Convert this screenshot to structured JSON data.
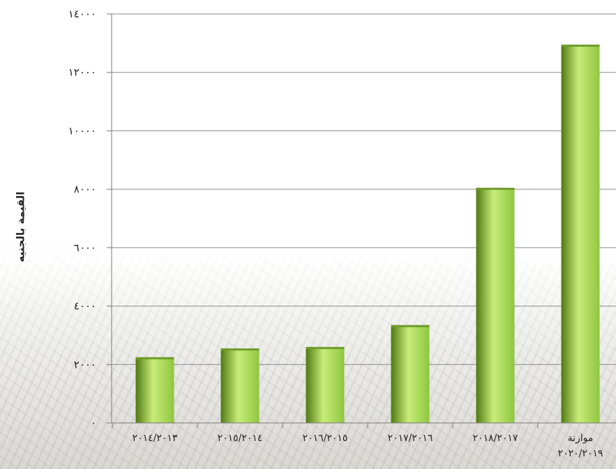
{
  "chart_data": {
    "type": "bar",
    "title": "",
    "xlabel": "",
    "ylabel": "القيمة بالجنيه",
    "categories": [
      [
        "٢٠١٤/٢٠١٣"
      ],
      [
        "٢٠١٥/٢٠١٤"
      ],
      [
        "٢٠١٦/٢٠١٥"
      ],
      [
        "٢٠١٧/٢٠١٦"
      ],
      [
        "٢٠١٨/٢٠١٧"
      ],
      [
        "موازنة",
        "٢٠٢٠/٢٠١٩"
      ]
    ],
    "values": [
      2250,
      2550,
      2600,
      3350,
      8050,
      12950
    ],
    "ylim": [
      0,
      14000
    ],
    "yticks": [
      0,
      2000,
      4000,
      6000,
      8000,
      10000,
      12000,
      14000
    ],
    "ytick_labels": [
      "٠",
      "٢٠٠٠",
      "٤٠٠٠",
      "٦٠٠٠",
      "٨٠٠٠",
      "١٠٠٠٠",
      "١٢٠٠٠",
      "١٤٠٠٠"
    ],
    "grid": true,
    "legend": "none",
    "colors": {
      "bar_light": "#c9ec7a",
      "bar_mid": "#8ec63f",
      "bar_dark": "#4e7a12",
      "bar_top": "#6f9c2c",
      "grid": "#8a8a8a",
      "axis": "#7a7a7a",
      "text": "#222222"
    }
  }
}
